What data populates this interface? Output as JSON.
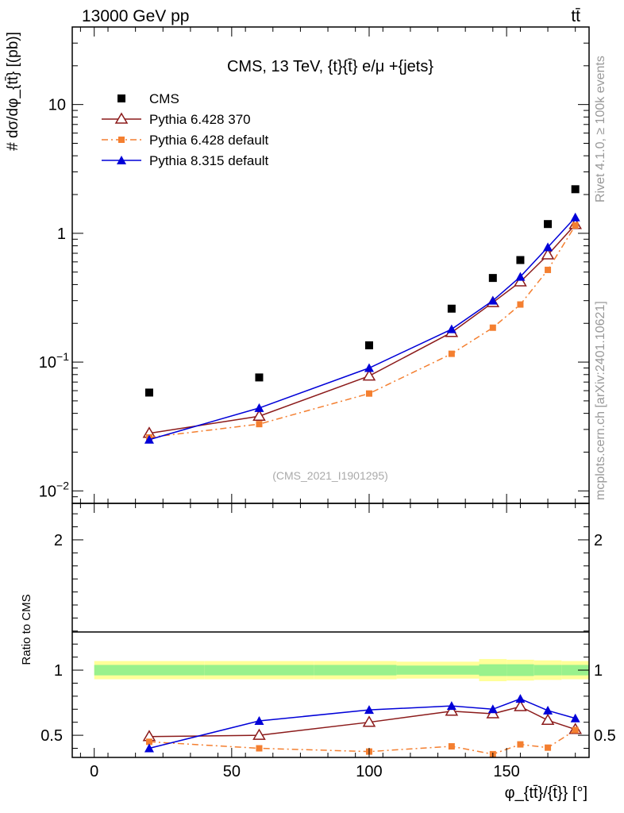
{
  "header": {
    "left": "13000 GeV pp",
    "right": "tt̄"
  },
  "side_labels": {
    "rivet": "Rivet 4.1.0, ≥ 100k events",
    "url": "mcplots.cern.ch [arXiv:2401.10621]"
  },
  "chart_data": [
    {
      "type": "line",
      "title": "CMS, 13 TeV, {t}{t̄} e/μ +{jets}",
      "watermark": "(CMS_2021_I1901295)",
      "ylabel": "# dσ/dφ_{tt̄} [(pb)]",
      "yscale": "log",
      "xlim": [
        -8,
        180
      ],
      "ylim": [
        0.008,
        40
      ],
      "yticks": [
        {
          "v": 0.01,
          "mant": "10",
          "exp": "−2"
        },
        {
          "v": 0.1,
          "mant": "10",
          "exp": "−1"
        },
        {
          "v": 1,
          "mant": "1",
          "exp": ""
        },
        {
          "v": 10,
          "mant": "10",
          "exp": ""
        }
      ],
      "x": [
        20,
        60,
        100,
        130,
        145,
        155,
        165,
        175
      ],
      "series": [
        {
          "name": "CMS",
          "values": [
            0.058,
            0.076,
            0.135,
            0.26,
            0.45,
            0.62,
            1.18,
            2.2
          ],
          "color": "#000000",
          "marker": "square",
          "line": "none"
        },
        {
          "name": "Pythia 6.428 370",
          "values": [
            0.028,
            0.038,
            0.078,
            0.17,
            0.29,
            0.42,
            0.68,
            1.17
          ],
          "color": "#8b1a1a",
          "marker": "open-triangle",
          "line": "solid"
        },
        {
          "name": "Pythia 6.428 default",
          "values": [
            0.026,
            0.033,
            0.057,
            0.116,
            0.185,
            0.28,
            0.52,
            1.15
          ],
          "color": "#f47f30",
          "marker": "small-square",
          "line": "dashdot"
        },
        {
          "name": "Pythia 8.315 default",
          "values": [
            0.025,
            0.044,
            0.09,
            0.18,
            0.3,
            0.46,
            0.78,
            1.33
          ],
          "color": "#0000d8",
          "marker": "triangle",
          "line": "solid"
        }
      ]
    },
    {
      "type": "line",
      "ylabel": "Ratio to CMS",
      "xlabel": "φ_{tt̄}/{t̄}} [°]",
      "xlim": [
        -8,
        180
      ],
      "ylim": [
        0.33,
        2.28
      ],
      "xticks": [
        0,
        50,
        100,
        150
      ],
      "yticks": [
        0.5,
        1,
        2
      ],
      "x": [
        20,
        60,
        100,
        130,
        145,
        155,
        165,
        175
      ],
      "band_edges": [
        0,
        40,
        80,
        110,
        140,
        150,
        160,
        170,
        180
      ],
      "band_stat": [
        0.04,
        0.04,
        0.04,
        0.035,
        0.045,
        0.045,
        0.04,
        0.04
      ],
      "band_total": [
        0.07,
        0.07,
        0.07,
        0.065,
        0.085,
        0.08,
        0.075,
        0.07
      ],
      "series": [
        {
          "name": "Pythia 6.428 370",
          "values": [
            0.49,
            0.5,
            0.6,
            0.685,
            0.665,
            0.72,
            0.615,
            0.545
          ],
          "errors": [
            0.03,
            0.025,
            0.015,
            0.015,
            0.015,
            0.02,
            0.015,
            0.01
          ],
          "color": "#8b1a1a",
          "marker": "open-triangle",
          "line": "solid"
        },
        {
          "name": "Pythia 6.428 default",
          "values": [
            0.45,
            0.4,
            0.375,
            0.415,
            0.355,
            0.43,
            0.405,
            0.54
          ],
          "errors": [
            0.02,
            0.015,
            0.015,
            0.02,
            0.02,
            0.02,
            0.015,
            0.01
          ],
          "color": "#f47f30",
          "marker": "small-square",
          "line": "dashdot"
        },
        {
          "name": "Pythia 8.315 default",
          "values": [
            0.4,
            0.61,
            0.695,
            0.725,
            0.7,
            0.78,
            0.69,
            0.63
          ],
          "errors": [
            0.03,
            0.03,
            0.02,
            0.02,
            0.02,
            0.02,
            0.015,
            0.01
          ],
          "color": "#0000d8",
          "marker": "triangle",
          "line": "solid"
        }
      ]
    }
  ]
}
